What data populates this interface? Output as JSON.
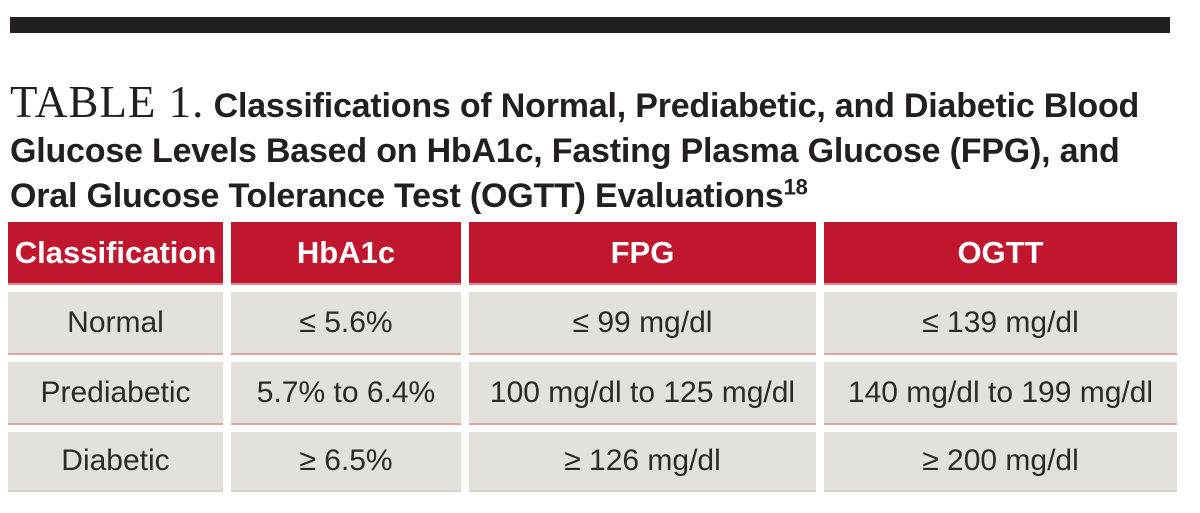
{
  "title": {
    "label": "TABLE 1.",
    "text": "Classifications of Normal, Prediabetic, and Diabetic Blood Glucose Levels Based on HbA1c, Fasting Plasma Glucose (FPG), and Oral Glucose Tolerance Test (OGTT) Evaluations",
    "reference": "18"
  },
  "table": {
    "headers": [
      "Classification",
      "HbA1c",
      "FPG",
      "OGTT"
    ],
    "rows": [
      [
        "Normal",
        "≤ 5.6%",
        "≤ 99 mg/dl",
        "≤ 139 mg/dl"
      ],
      [
        "Prediabetic",
        "5.7% to 6.4%",
        "100 mg/dl to 125 mg/dl",
        "140 mg/dl to 199 mg/dl"
      ],
      [
        "Diabetic",
        "≥ 6.5%",
        "≥ 126 mg/dl",
        "≥ 200 mg/dl"
      ]
    ]
  },
  "colors": {
    "header_bg": "#c0172e",
    "cell_bg": "#e4e1dc",
    "top_bar": "#231f20",
    "header_text": "#ffffff",
    "body_text": "#2d2a26"
  }
}
